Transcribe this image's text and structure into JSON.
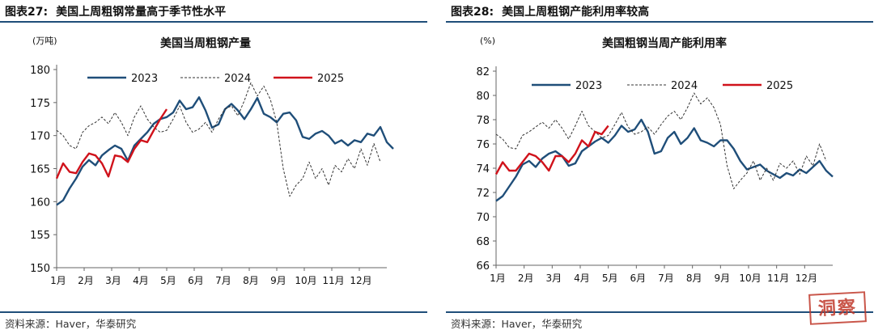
{
  "charts": [
    {
      "figure_label": "图表27:",
      "figure_title": "美国上周粗钢常量高于季节性水平",
      "source": "资料来源：Haver，华泰研究"
    },
    {
      "figure_label": "图表28:",
      "figure_title": "美国上周粗钢产能利用率较高",
      "source": "资料来源：Haver，华泰研究"
    }
  ],
  "stamp_text": "洞察",
  "colors": {
    "s2023": "#1f4e79",
    "s2024": "#333333",
    "s2025": "#d0121b",
    "axis": "#666666"
  },
  "chart_data": [
    {
      "type": "line",
      "title": "美国当周粗钢产量",
      "ylabel": "(万吨)",
      "ylim": [
        150,
        180
      ],
      "yticks": [
        150,
        155,
        160,
        165,
        170,
        175,
        180
      ],
      "xlim": [
        1,
        52
      ],
      "x_tick_labels": [
        "1月",
        "2月",
        "3月",
        "4月",
        "5月",
        "6月",
        "7月",
        "8月",
        "9月",
        "10月",
        "11月",
        "12月"
      ],
      "legend": [
        "2023",
        "2024",
        "2025"
      ],
      "series": [
        {
          "name": "2023",
          "style": "solid",
          "color": "#1f4e79",
          "values": [
            159.5,
            160.2,
            162.0,
            163.5,
            165.3,
            166.3,
            165.5,
            167.0,
            167.8,
            168.5,
            168.0,
            166.2,
            168.5,
            169.5,
            170.5,
            171.8,
            172.5,
            172.8,
            173.5,
            175.3,
            174.0,
            174.3,
            175.8,
            173.8,
            171.2,
            171.7,
            174.0,
            174.8,
            173.8,
            172.5,
            174.0,
            175.7,
            173.3,
            172.8,
            172.0,
            173.3,
            173.5,
            172.3,
            169.8,
            169.5,
            170.3,
            170.7,
            170.0,
            168.8,
            169.3,
            168.5,
            169.3,
            169.0,
            170.3,
            170.0,
            171.3,
            169.0,
            168.0
          ]
        },
        {
          "name": "2024",
          "style": "dashed",
          "color": "#333333",
          "values": [
            170.8,
            170.0,
            168.5,
            168.0,
            170.5,
            171.5,
            172.0,
            172.8,
            171.8,
            173.5,
            172.0,
            170.0,
            172.8,
            174.5,
            172.5,
            171.3,
            170.5,
            170.8,
            172.5,
            174.5,
            172.0,
            170.5,
            171.0,
            172.0,
            170.5,
            172.5,
            174.0,
            174.5,
            173.0,
            175.3,
            178.0,
            176.0,
            177.5,
            175.5,
            172.0,
            165.0,
            160.8,
            162.5,
            163.5,
            166.0,
            163.5,
            165.0,
            162.5,
            165.5,
            164.5,
            166.5,
            165.0,
            168.0,
            165.5,
            168.8,
            166.0
          ]
        },
        {
          "name": "2025",
          "style": "solid",
          "color": "#d0121b",
          "values": [
            163.5,
            165.8,
            164.5,
            164.3,
            166.0,
            167.3,
            167.0,
            165.8,
            163.8,
            167.0,
            166.8,
            166.0,
            168.0,
            169.3,
            169.0,
            170.8,
            172.5,
            174.0
          ]
        }
      ]
    },
    {
      "type": "line",
      "title": "美国粗钢当周产能利用率",
      "ylabel": "(%)",
      "ylim": [
        66,
        82
      ],
      "yticks": [
        66,
        68,
        70,
        72,
        74,
        76,
        78,
        80,
        82
      ],
      "xlim": [
        1,
        52
      ],
      "x_tick_labels": [
        "1月",
        "2月",
        "3月",
        "4月",
        "5月",
        "6月",
        "7月",
        "8月",
        "9月",
        "10月",
        "11月",
        "12月"
      ],
      "legend": [
        "2023",
        "2024",
        "2025"
      ],
      "series": [
        {
          "name": "2023",
          "style": "solid",
          "color": "#1f4e79",
          "values": [
            71.3,
            71.7,
            72.5,
            73.3,
            74.3,
            74.6,
            74.1,
            74.8,
            75.2,
            75.4,
            75.0,
            74.2,
            74.4,
            75.4,
            75.8,
            76.2,
            76.5,
            76.1,
            76.7,
            77.5,
            77.0,
            77.2,
            78.0,
            77.0,
            75.2,
            75.4,
            76.5,
            77.0,
            76.0,
            76.5,
            77.3,
            76.3,
            76.1,
            75.8,
            76.3,
            76.3,
            75.6,
            74.6,
            73.9,
            74.1,
            74.3,
            73.8,
            73.5,
            73.2,
            73.6,
            73.4,
            73.9,
            73.6,
            74.1,
            74.6,
            73.8,
            73.3
          ]
        },
        {
          "name": "2024",
          "style": "dashed",
          "color": "#333333",
          "values": [
            76.8,
            76.4,
            75.7,
            75.6,
            76.7,
            77.0,
            77.4,
            77.8,
            77.3,
            78.0,
            77.3,
            76.4,
            77.5,
            78.7,
            77.5,
            77.0,
            76.5,
            76.7,
            77.6,
            78.6,
            77.4,
            76.8,
            77.0,
            77.4,
            76.8,
            77.6,
            78.3,
            78.7,
            78.0,
            79.0,
            80.2,
            79.3,
            79.8,
            79.0,
            77.6,
            74.2,
            72.3,
            73.0,
            73.6,
            74.6,
            73.0,
            74.0,
            73.0,
            74.4,
            74.0,
            74.6,
            73.5,
            75.0,
            74.2,
            76.0,
            74.6
          ]
        },
        {
          "name": "2025",
          "style": "solid",
          "color": "#d0121b",
          "values": [
            73.5,
            74.5,
            73.8,
            73.8,
            74.5,
            75.2,
            75.0,
            74.5,
            73.8,
            75.0,
            75.0,
            74.5,
            75.2,
            76.3,
            75.8,
            77.0,
            76.8,
            77.5
          ]
        }
      ]
    }
  ]
}
